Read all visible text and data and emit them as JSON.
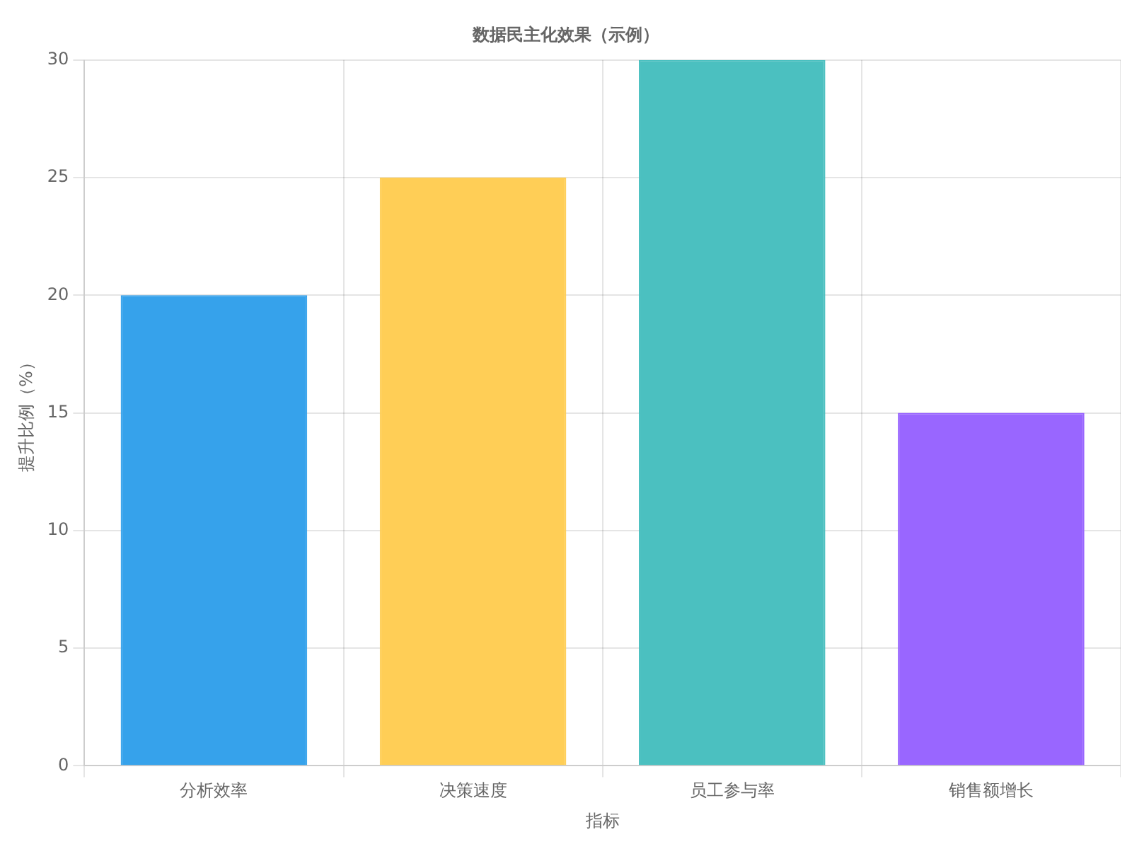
{
  "chart_data": {
    "type": "bar",
    "title": "数据民主化效果（示例）",
    "xlabel": "指标",
    "ylabel": "提升比例（%）",
    "categories": [
      "分析效率",
      "决策速度",
      "员工参与率",
      "销售额增长"
    ],
    "values": [
      20,
      25,
      30,
      15
    ],
    "colors": [
      "#36a2eb",
      "#ffce56",
      "#4bc0c0",
      "#9966ff"
    ],
    "ylim": [
      0,
      30
    ],
    "yticks": [
      0,
      5,
      10,
      15,
      20,
      25,
      30
    ],
    "grid": true,
    "legend": false
  }
}
